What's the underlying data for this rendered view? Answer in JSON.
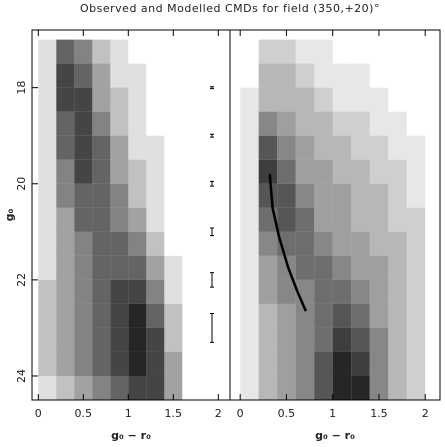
{
  "title": "Observed and Modelled CMDs for field  (350,+20)°",
  "chart_data": [
    {
      "type": "heatmap",
      "color": "#000000",
      "xlabel": "g₀ − r₀",
      "ylabel": "g₀",
      "xlim": [
        -0.07,
        2.13
      ],
      "ylim": [
        16.8,
        24.5
      ],
      "y_inverted": true,
      "xticks": [
        0,
        0.5,
        1,
        1.5,
        2
      ],
      "yticks": [
        18,
        20,
        22,
        24
      ],
      "x_bins": [
        0,
        0.2,
        0.4,
        0.6,
        0.8,
        1.0,
        1.2,
        1.4,
        1.6,
        1.8,
        2.0
      ],
      "y_bins": [
        17,
        17.5,
        18,
        18.5,
        19,
        19.5,
        20,
        20.5,
        21,
        21.5,
        22,
        22.5,
        23,
        23.5,
        24,
        24.5
      ],
      "values": [
        [
          1,
          5,
          4,
          2,
          1,
          0,
          0,
          0,
          0,
          0
        ],
        [
          1,
          6,
          5,
          3,
          1,
          1,
          0,
          0,
          0,
          0
        ],
        [
          1,
          6,
          6,
          3,
          2,
          1,
          0,
          0,
          0,
          0
        ],
        [
          1,
          5,
          6,
          4,
          2,
          1,
          0,
          0,
          0,
          0
        ],
        [
          1,
          5,
          6,
          5,
          3,
          1,
          1,
          0,
          0,
          0
        ],
        [
          1,
          4,
          6,
          5,
          3,
          2,
          1,
          0,
          0,
          0
        ],
        [
          1,
          4,
          5,
          5,
          4,
          2,
          1,
          0,
          0,
          0
        ],
        [
          1,
          3,
          5,
          5,
          4,
          3,
          1,
          0,
          0,
          0
        ],
        [
          1,
          3,
          4,
          5,
          5,
          4,
          2,
          0,
          0,
          0
        ],
        [
          1,
          3,
          4,
          5,
          5,
          5,
          3,
          1,
          0,
          0
        ],
        [
          2,
          3,
          4,
          5,
          6,
          6,
          4,
          1,
          0,
          0
        ],
        [
          2,
          3,
          4,
          5,
          6,
          7,
          5,
          2,
          0,
          0
        ],
        [
          2,
          3,
          4,
          5,
          6,
          7,
          6,
          2,
          0,
          0
        ],
        [
          2,
          3,
          4,
          5,
          6,
          7,
          6,
          3,
          0,
          0
        ],
        [
          1,
          2,
          3,
          4,
          5,
          6,
          6,
          3,
          0,
          0
        ]
      ],
      "error_bars": {
        "x": [
          1.93,
          1.93,
          1.93,
          1.93,
          1.93,
          1.93
        ],
        "y": [
          18,
          19,
          20,
          21,
          22,
          23
        ],
        "errors": [
          0.02,
          0.03,
          0.05,
          0.08,
          0.15,
          0.3
        ]
      }
    },
    {
      "type": "heatmap",
      "color": "#000000",
      "xlabel": "g₀ − r₀",
      "xlim": [
        -0.11,
        2.16
      ],
      "ylim": [
        16.8,
        24.5
      ],
      "y_inverted": true,
      "xticks": [
        0,
        0.5,
        1,
        1.5,
        2
      ],
      "x_bins": [
        0,
        0.2,
        0.4,
        0.6,
        0.8,
        1.0,
        1.2,
        1.4,
        1.6,
        1.8,
        2.0
      ],
      "y_bins": [
        17,
        17.5,
        18,
        18.5,
        19,
        19.5,
        20,
        20.5,
        21,
        21.5,
        22,
        22.5,
        23,
        23.5,
        24,
        24.5
      ],
      "values": [
        [
          0,
          2,
          2,
          1,
          1,
          0,
          0,
          0,
          0,
          0
        ],
        [
          0,
          3,
          3,
          2,
          1,
          1,
          1,
          0,
          0,
          0
        ],
        [
          1,
          3,
          3,
          3,
          2,
          1,
          1,
          1,
          0,
          0
        ],
        [
          1,
          5,
          4,
          3,
          3,
          2,
          2,
          1,
          1,
          0
        ],
        [
          1,
          7,
          5,
          4,
          3,
          3,
          2,
          2,
          1,
          1
        ],
        [
          1,
          8,
          6,
          4,
          4,
          3,
          3,
          2,
          2,
          1
        ],
        [
          1,
          7,
          7,
          5,
          4,
          4,
          3,
          3,
          2,
          1
        ],
        [
          1,
          6,
          7,
          6,
          4,
          4,
          3,
          3,
          2,
          2
        ],
        [
          1,
          5,
          6,
          6,
          5,
          4,
          4,
          3,
          3,
          2
        ],
        [
          1,
          4,
          5,
          6,
          6,
          5,
          4,
          4,
          3,
          2
        ],
        [
          1,
          4,
          5,
          5,
          6,
          6,
          5,
          4,
          3,
          2
        ],
        [
          1,
          3,
          4,
          5,
          6,
          7,
          6,
          4,
          3,
          2
        ],
        [
          1,
          3,
          4,
          5,
          6,
          8,
          7,
          5,
          3,
          2
        ],
        [
          1,
          3,
          4,
          5,
          7,
          9,
          8,
          5,
          3,
          2
        ],
        [
          1,
          3,
          4,
          5,
          7,
          9,
          9,
          5,
          3,
          2
        ]
      ],
      "line": {
        "color": "#000000",
        "x": [
          0.32,
          0.35,
          0.42,
          0.52,
          0.62,
          0.71
        ],
        "y": [
          19.8,
          20.5,
          21.1,
          21.75,
          22.25,
          22.65
        ]
      }
    }
  ]
}
